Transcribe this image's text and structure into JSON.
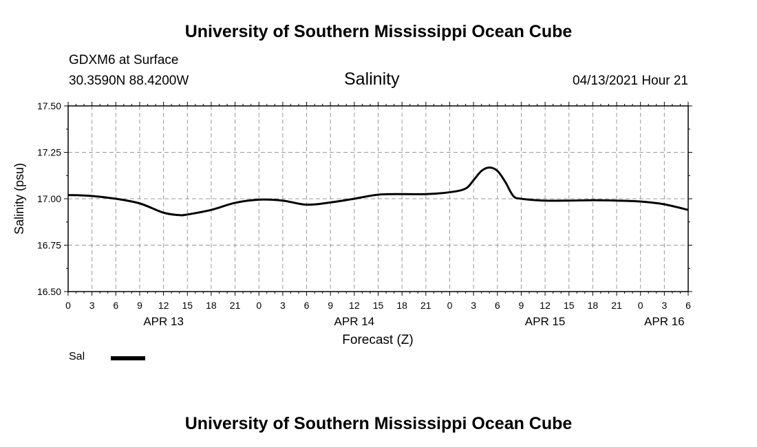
{
  "header": {
    "top_title": "University of Southern Mississippi Ocean Cube",
    "station": "GDXM6 at Surface",
    "coords": "30.3590N  88.4200W",
    "date": "04/13/2021 Hour 21"
  },
  "footer": {
    "bottom_title": "University of Southern Mississippi Ocean Cube"
  },
  "legend": {
    "label": "Sal"
  },
  "colors": {
    "line": "#000000",
    "grid": "#999999",
    "frame": "#000000"
  },
  "chart_data": {
    "type": "line",
    "title": "Salinity",
    "xlabel": "Forecast (Z)",
    "ylabel": "Salinity (psu)",
    "x_unit": "hours since APR 13 00Z",
    "xlim": [
      0,
      78
    ],
    "ylim": [
      16.5,
      17.5
    ],
    "yticks": [
      "17.50",
      "17.25",
      "17.00",
      "16.75",
      "16.50"
    ],
    "ytick_values": [
      17.5,
      17.25,
      17.0,
      16.75,
      16.5
    ],
    "xtick_labels": [
      "0",
      "3",
      "6",
      "9",
      "12",
      "15",
      "18",
      "21",
      "0",
      "3",
      "6",
      "9",
      "12",
      "15",
      "18",
      "21",
      "0",
      "3",
      "6",
      "9",
      "12",
      "15",
      "18",
      "21",
      "0",
      "3",
      "6"
    ],
    "date_labels": [
      {
        "label": "APR 13",
        "hour": 12
      },
      {
        "label": "APR 14",
        "hour": 36
      },
      {
        "label": "APR 15",
        "hour": 60
      },
      {
        "label": "APR 16",
        "hour": 75
      }
    ],
    "grid": true,
    "series": [
      {
        "name": "Sal",
        "x": [
          0,
          3,
          6,
          9,
          12,
          14,
          15,
          18,
          21,
          24,
          27,
          30,
          33,
          36,
          39,
          42,
          45,
          48,
          50,
          51,
          52,
          53,
          54,
          55,
          56,
          57,
          60,
          63,
          66,
          69,
          72,
          75,
          78
        ],
        "values": [
          17.02,
          17.015,
          17.0,
          16.975,
          16.925,
          16.912,
          16.915,
          16.94,
          16.978,
          16.995,
          16.99,
          16.968,
          16.98,
          17.0,
          17.022,
          17.025,
          17.025,
          17.035,
          17.055,
          17.1,
          17.15,
          17.168,
          17.15,
          17.09,
          17.015,
          17.0,
          16.99,
          16.99,
          16.992,
          16.99,
          16.985,
          16.97,
          16.94
        ]
      }
    ]
  }
}
